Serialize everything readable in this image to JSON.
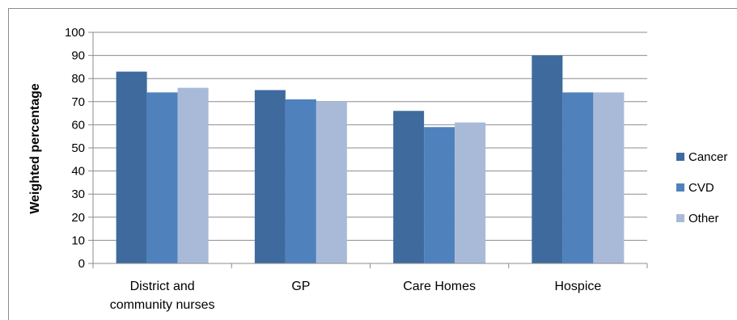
{
  "chart_data": {
    "type": "bar",
    "title": "",
    "xlabel": "",
    "ylabel": "Weighted percentage",
    "ylim": [
      0,
      100
    ],
    "yticks": [
      0,
      10,
      20,
      30,
      40,
      50,
      60,
      70,
      80,
      90,
      100
    ],
    "grid": true,
    "legend_position": "right",
    "categories": [
      [
        "District and",
        "community nurses"
      ],
      [
        "GP"
      ],
      [
        "Care Homes"
      ],
      [
        "Hospice"
      ]
    ],
    "series": [
      {
        "name": "Cancer",
        "color": "#3E6A9E",
        "values": [
          83,
          75,
          66,
          90
        ]
      },
      {
        "name": "CVD",
        "color": "#4F81BD",
        "values": [
          74,
          71,
          59,
          74
        ]
      },
      {
        "name": "Other",
        "color": "#A9BAD9",
        "values": [
          76,
          70,
          61,
          74
        ]
      }
    ]
  }
}
